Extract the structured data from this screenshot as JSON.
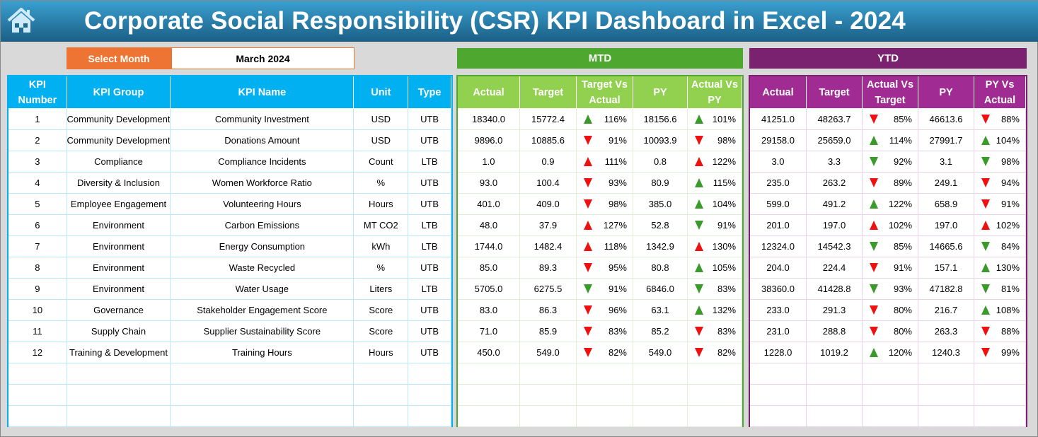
{
  "title": "Corporate Social Responsibility (CSR) KPI Dashboard in Excel - 2024",
  "select_month_label": "Select Month",
  "selected_month": "March 2024",
  "mtd_label": "MTD",
  "ytd_label": "YTD",
  "colors": {
    "blue": "#00b0f0",
    "mtd_band": "#4ea72e",
    "mtd_header": "#92d050",
    "ytd_band": "#7a2170",
    "ytd_header": "#a02b93",
    "orange": "#ed7432",
    "up_green": "#3a9a2a",
    "down_red": "#ee1111"
  },
  "left_headers": [
    "KPI Number",
    "KPI Group",
    "KPI Name",
    "Unit",
    "Type"
  ],
  "mtd_headers": [
    "Actual",
    "Target",
    "Target Vs Actual",
    "PY",
    "Actual Vs PY"
  ],
  "ytd_headers": [
    "Actual",
    "Target",
    "Actual Vs Target",
    "PY",
    "PY Vs Actual"
  ],
  "rows": [
    {
      "num": "1",
      "group": "Community Development",
      "name": "Community Investment",
      "unit": "USD",
      "type": "UTB",
      "mtd": {
        "actual": "18340.0",
        "target": "15772.4",
        "tva": {
          "pct": "116%",
          "dir": "up",
          "color": "green"
        },
        "py": "18156.6",
        "avpy": {
          "pct": "101%",
          "dir": "up",
          "color": "green"
        }
      },
      "ytd": {
        "actual": "41251.0",
        "target": "48263.7",
        "avt": {
          "pct": "85%",
          "dir": "down",
          "color": "red"
        },
        "py": "46613.6",
        "pyva": {
          "pct": "88%",
          "dir": "down",
          "color": "red"
        }
      }
    },
    {
      "num": "2",
      "group": "Community Development",
      "name": "Donations Amount",
      "unit": "USD",
      "type": "UTB",
      "mtd": {
        "actual": "9896.0",
        "target": "10885.6",
        "tva": {
          "pct": "91%",
          "dir": "down",
          "color": "red"
        },
        "py": "10093.9",
        "avpy": {
          "pct": "98%",
          "dir": "down",
          "color": "red"
        }
      },
      "ytd": {
        "actual": "29158.0",
        "target": "25659.0",
        "avt": {
          "pct": "114%",
          "dir": "up",
          "color": "green"
        },
        "py": "27991.7",
        "pyva": {
          "pct": "104%",
          "dir": "up",
          "color": "green"
        }
      }
    },
    {
      "num": "3",
      "group": "Compliance",
      "name": "Compliance Incidents",
      "unit": "Count",
      "type": "LTB",
      "mtd": {
        "actual": "1.0",
        "target": "0.9",
        "tva": {
          "pct": "111%",
          "dir": "up",
          "color": "red"
        },
        "py": "0.8",
        "avpy": {
          "pct": "122%",
          "dir": "up",
          "color": "red"
        }
      },
      "ytd": {
        "actual": "3.0",
        "target": "3.3",
        "avt": {
          "pct": "92%",
          "dir": "down",
          "color": "green"
        },
        "py": "3.1",
        "pyva": {
          "pct": "98%",
          "dir": "down",
          "color": "green"
        }
      }
    },
    {
      "num": "4",
      "group": "Diversity & Inclusion",
      "name": "Women Workforce Ratio",
      "unit": "%",
      "type": "UTB",
      "mtd": {
        "actual": "93.0",
        "target": "100.4",
        "tva": {
          "pct": "93%",
          "dir": "down",
          "color": "red"
        },
        "py": "80.9",
        "avpy": {
          "pct": "115%",
          "dir": "up",
          "color": "green"
        }
      },
      "ytd": {
        "actual": "235.0",
        "target": "263.2",
        "avt": {
          "pct": "89%",
          "dir": "down",
          "color": "red"
        },
        "py": "249.1",
        "pyva": {
          "pct": "94%",
          "dir": "down",
          "color": "red"
        }
      }
    },
    {
      "num": "5",
      "group": "Employee Engagement",
      "name": "Volunteering Hours",
      "unit": "Hours",
      "type": "UTB",
      "mtd": {
        "actual": "401.0",
        "target": "409.0",
        "tva": {
          "pct": "98%",
          "dir": "down",
          "color": "red"
        },
        "py": "385.0",
        "avpy": {
          "pct": "104%",
          "dir": "up",
          "color": "green"
        }
      },
      "ytd": {
        "actual": "599.0",
        "target": "491.2",
        "avt": {
          "pct": "122%",
          "dir": "up",
          "color": "green"
        },
        "py": "658.9",
        "pyva": {
          "pct": "91%",
          "dir": "down",
          "color": "red"
        }
      }
    },
    {
      "num": "6",
      "group": "Environment",
      "name": "Carbon Emissions",
      "unit": "MT CO2",
      "type": "LTB",
      "mtd": {
        "actual": "48.0",
        "target": "37.9",
        "tva": {
          "pct": "127%",
          "dir": "up",
          "color": "red"
        },
        "py": "52.8",
        "avpy": {
          "pct": "91%",
          "dir": "down",
          "color": "green"
        }
      },
      "ytd": {
        "actual": "201.0",
        "target": "197.0",
        "avt": {
          "pct": "102%",
          "dir": "up",
          "color": "red"
        },
        "py": "197.0",
        "pyva": {
          "pct": "102%",
          "dir": "up",
          "color": "red"
        }
      }
    },
    {
      "num": "7",
      "group": "Environment",
      "name": "Energy Consumption",
      "unit": "kWh",
      "type": "LTB",
      "mtd": {
        "actual": "1744.0",
        "target": "1482.4",
        "tva": {
          "pct": "118%",
          "dir": "up",
          "color": "red"
        },
        "py": "1342.9",
        "avpy": {
          "pct": "130%",
          "dir": "up",
          "color": "red"
        }
      },
      "ytd": {
        "actual": "12324.0",
        "target": "14542.3",
        "avt": {
          "pct": "85%",
          "dir": "down",
          "color": "green"
        },
        "py": "14665.6",
        "pyva": {
          "pct": "84%",
          "dir": "down",
          "color": "green"
        }
      }
    },
    {
      "num": "8",
      "group": "Environment",
      "name": "Waste Recycled",
      "unit": "%",
      "type": "UTB",
      "mtd": {
        "actual": "85.0",
        "target": "89.3",
        "tva": {
          "pct": "95%",
          "dir": "down",
          "color": "red"
        },
        "py": "80.8",
        "avpy": {
          "pct": "105%",
          "dir": "up",
          "color": "green"
        }
      },
      "ytd": {
        "actual": "204.0",
        "target": "224.4",
        "avt": {
          "pct": "91%",
          "dir": "down",
          "color": "red"
        },
        "py": "157.1",
        "pyva": {
          "pct": "130%",
          "dir": "up",
          "color": "green"
        }
      }
    },
    {
      "num": "9",
      "group": "Environment",
      "name": "Water Usage",
      "unit": "Liters",
      "type": "LTB",
      "mtd": {
        "actual": "5705.0",
        "target": "6275.5",
        "tva": {
          "pct": "91%",
          "dir": "down",
          "color": "green"
        },
        "py": "6846.0",
        "avpy": {
          "pct": "83%",
          "dir": "down",
          "color": "green"
        }
      },
      "ytd": {
        "actual": "38360.0",
        "target": "41428.8",
        "avt": {
          "pct": "93%",
          "dir": "down",
          "color": "green"
        },
        "py": "47182.8",
        "pyva": {
          "pct": "81%",
          "dir": "down",
          "color": "green"
        }
      }
    },
    {
      "num": "10",
      "group": "Governance",
      "name": "Stakeholder Engagement Score",
      "unit": "Score",
      "type": "UTB",
      "mtd": {
        "actual": "83.0",
        "target": "86.3",
        "tva": {
          "pct": "96%",
          "dir": "down",
          "color": "red"
        },
        "py": "63.1",
        "avpy": {
          "pct": "132%",
          "dir": "up",
          "color": "green"
        }
      },
      "ytd": {
        "actual": "233.0",
        "target": "291.3",
        "avt": {
          "pct": "80%",
          "dir": "down",
          "color": "red"
        },
        "py": "216.7",
        "pyva": {
          "pct": "108%",
          "dir": "up",
          "color": "green"
        }
      }
    },
    {
      "num": "11",
      "group": "Supply Chain",
      "name": "Supplier Sustainability Score",
      "unit": "Score",
      "type": "UTB",
      "mtd": {
        "actual": "71.0",
        "target": "85.9",
        "tva": {
          "pct": "83%",
          "dir": "down",
          "color": "red"
        },
        "py": "85.2",
        "avpy": {
          "pct": "83%",
          "dir": "down",
          "color": "red"
        }
      },
      "ytd": {
        "actual": "231.0",
        "target": "288.8",
        "avt": {
          "pct": "80%",
          "dir": "down",
          "color": "red"
        },
        "py": "263.3",
        "pyva": {
          "pct": "88%",
          "dir": "down",
          "color": "red"
        }
      }
    },
    {
      "num": "12",
      "group": "Training & Development",
      "name": "Training Hours",
      "unit": "Hours",
      "type": "UTB",
      "mtd": {
        "actual": "450.0",
        "target": "549.0",
        "tva": {
          "pct": "82%",
          "dir": "down",
          "color": "red"
        },
        "py": "549.0",
        "avpy": {
          "pct": "82%",
          "dir": "down",
          "color": "red"
        }
      },
      "ytd": {
        "actual": "1228.0",
        "target": "1019.2",
        "avt": {
          "pct": "120%",
          "dir": "up",
          "color": "green"
        },
        "py": "1240.3",
        "pyva": {
          "pct": "99%",
          "dir": "down",
          "color": "red"
        }
      }
    }
  ]
}
